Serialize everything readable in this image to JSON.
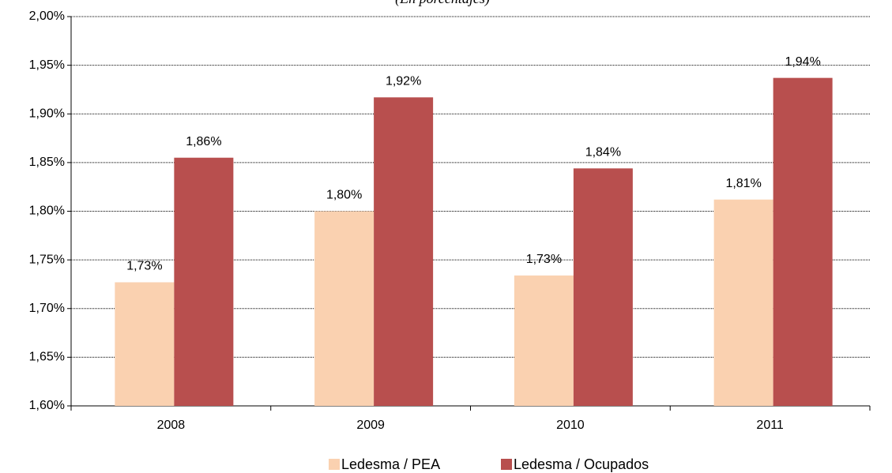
{
  "chart_data": {
    "type": "bar",
    "subtitle": "(En porcentajes)",
    "categories": [
      "2008",
      "2009",
      "2010",
      "2011"
    ],
    "series": [
      {
        "name": "Ledesma / PEA",
        "color": "#fad1b0",
        "values": [
          1.727,
          1.8,
          1.734,
          1.812
        ],
        "value_labels": [
          "1,73%",
          "1,80%",
          "1,73%",
          "1,81%"
        ]
      },
      {
        "name": "Ledesma / Ocupados",
        "color": "#b84f4e",
        "values": [
          1.855,
          1.917,
          1.844,
          1.937
        ],
        "value_labels": [
          "1,86%",
          "1,92%",
          "1,84%",
          "1,94%"
        ]
      }
    ],
    "ylim": [
      1.6,
      2.0
    ],
    "yticks": [
      {
        "value": 1.6,
        "label": "1,60%"
      },
      {
        "value": 1.65,
        "label": "1,65%"
      },
      {
        "value": 1.7,
        "label": "1,70%"
      },
      {
        "value": 1.75,
        "label": "1,75%"
      },
      {
        "value": 1.8,
        "label": "1,80%"
      },
      {
        "value": 1.85,
        "label": "1,85%"
      },
      {
        "value": 1.9,
        "label": "1,90%"
      },
      {
        "value": 1.95,
        "label": "1,95%"
      },
      {
        "value": 2.0,
        "label": "2,00%"
      }
    ],
    "grid": true,
    "legend": "bottom"
  }
}
